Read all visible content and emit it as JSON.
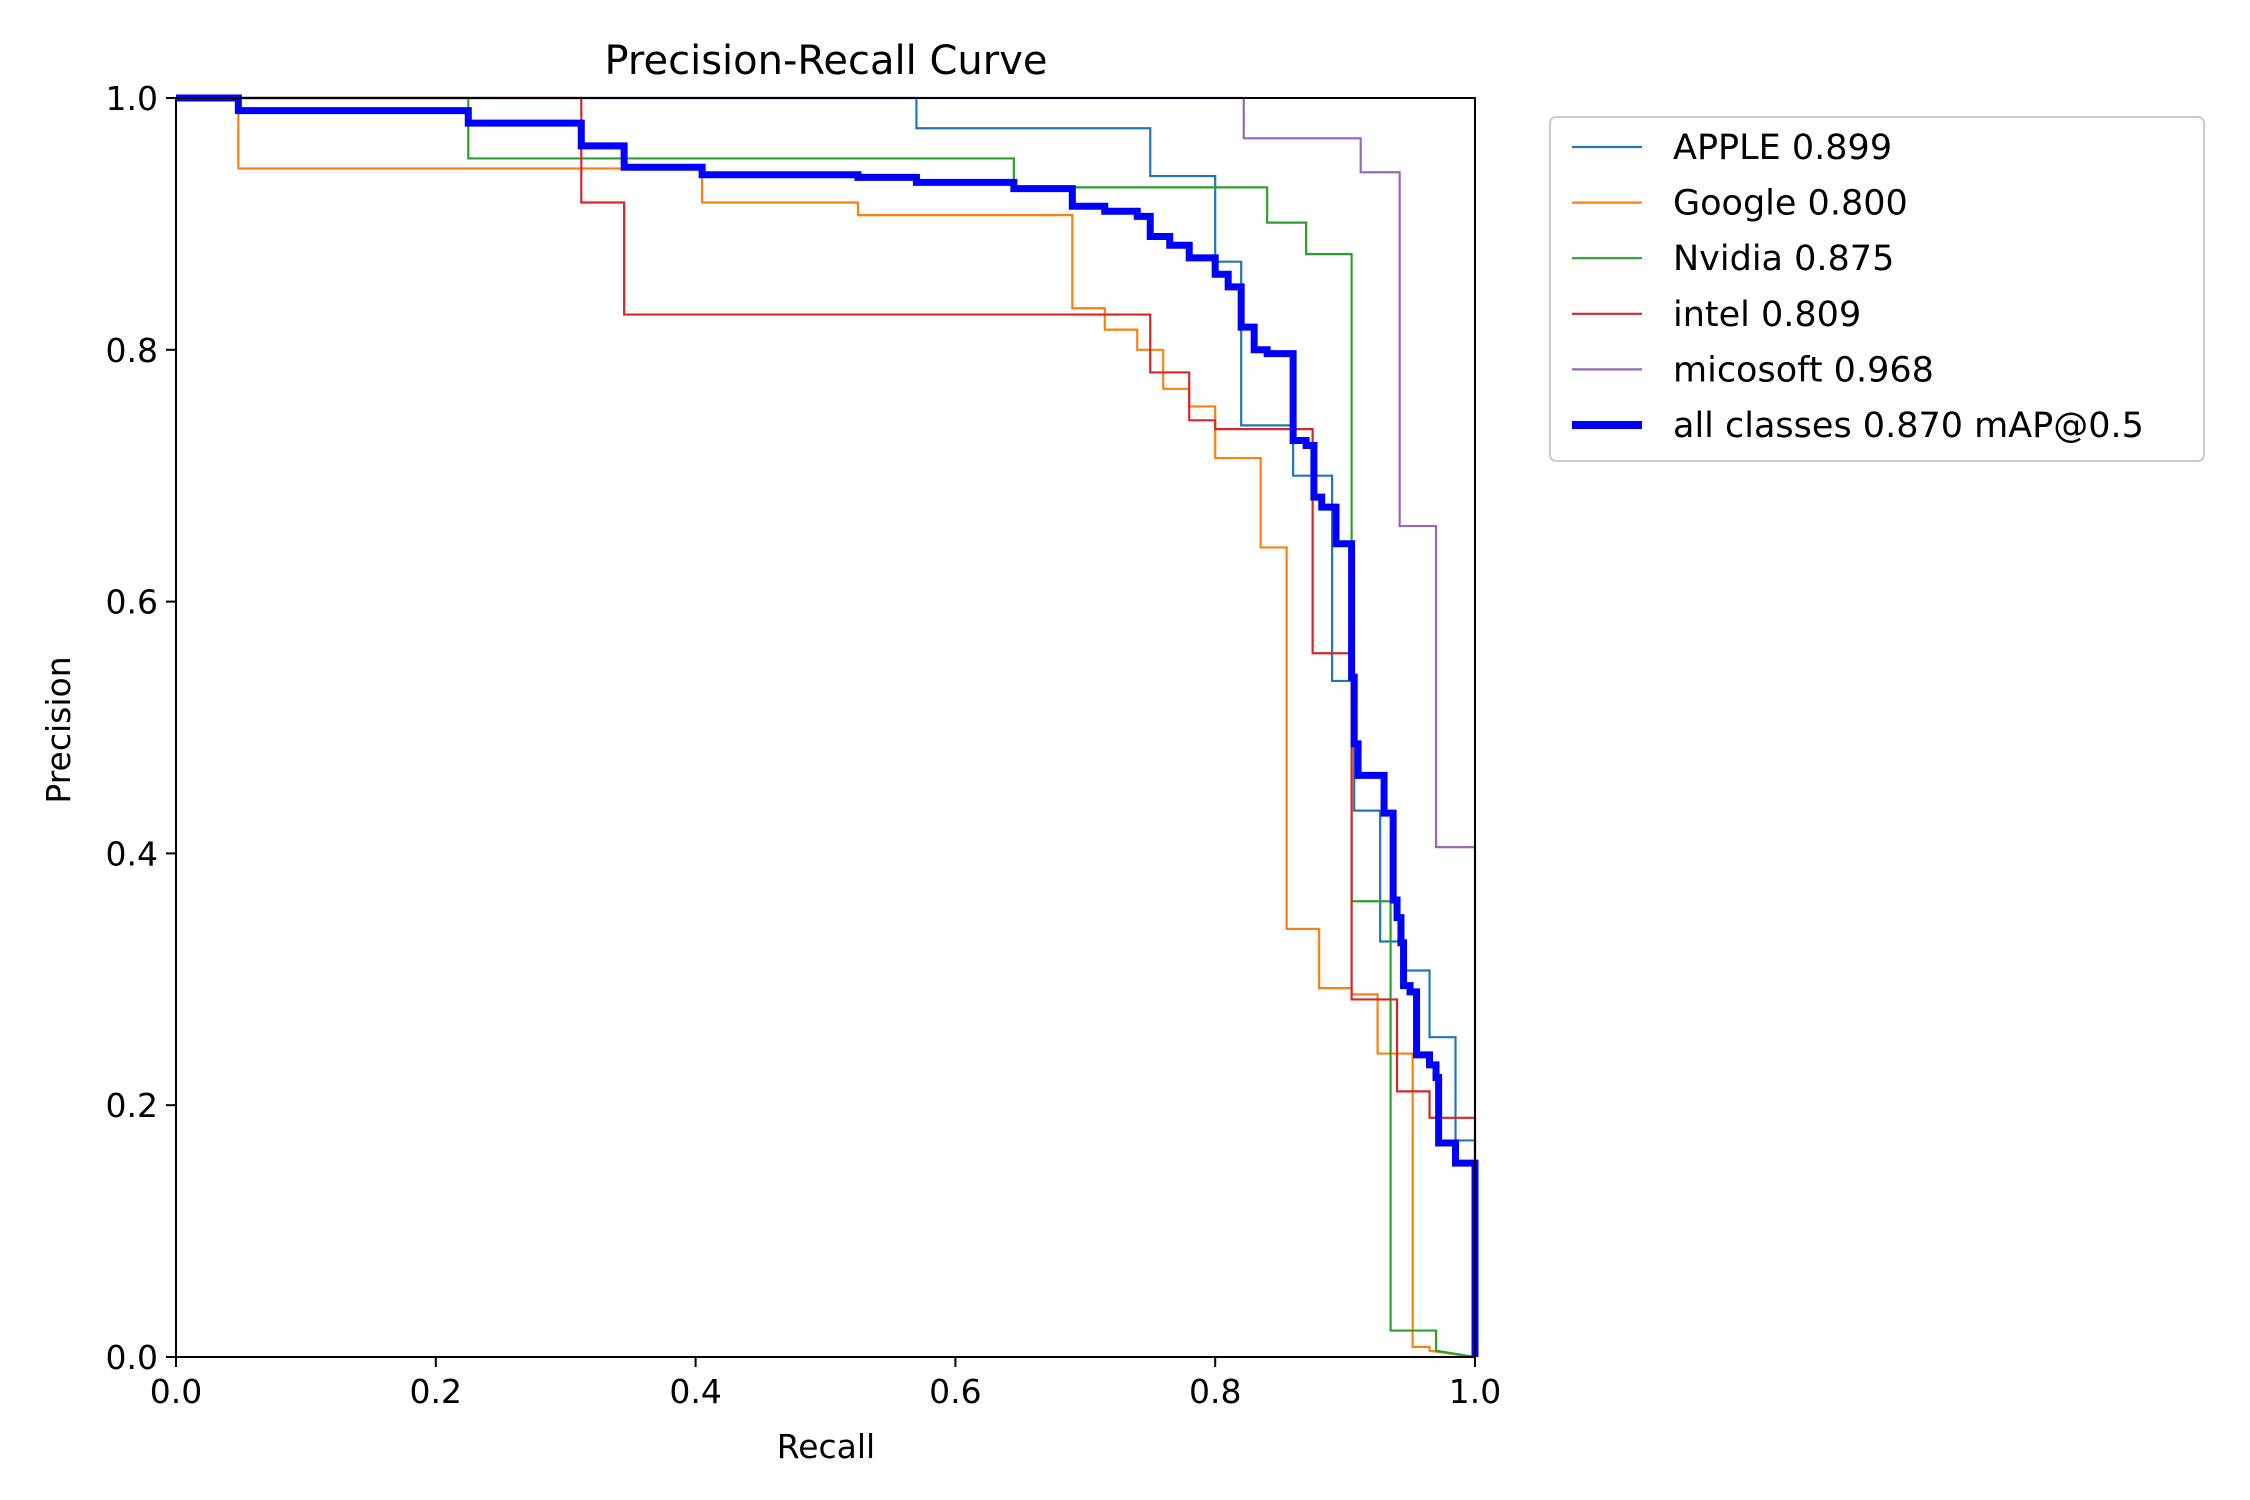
{
  "chart_data": {
    "type": "line",
    "title": "Precision-Recall Curve",
    "xlabel": "Recall",
    "ylabel": "Precision",
    "xlim": [
      0,
      1
    ],
    "ylim": [
      0,
      1
    ],
    "x_ticks": [
      "0.0",
      "0.2",
      "0.4",
      "0.6",
      "0.8",
      "1.0"
    ],
    "y_ticks": [
      "0.0",
      "0.2",
      "0.4",
      "0.6",
      "0.8",
      "1.0"
    ],
    "grid": false,
    "legend_position": "outside-upper-right",
    "series": [
      {
        "name": "APPLE 0.899",
        "color": "#1f77b4",
        "weight": "thin",
        "points": [
          [
            0,
            1.0
          ],
          [
            0.57,
            1.0
          ],
          [
            0.57,
            0.976
          ],
          [
            0.75,
            0.976
          ],
          [
            0.75,
            0.938
          ],
          [
            0.8,
            0.938
          ],
          [
            0.8,
            0.87
          ],
          [
            0.82,
            0.87
          ],
          [
            0.82,
            0.74
          ],
          [
            0.86,
            0.74
          ],
          [
            0.86,
            0.7
          ],
          [
            0.89,
            0.7
          ],
          [
            0.89,
            0.537
          ],
          [
            0.907,
            0.537
          ],
          [
            0.907,
            0.434
          ],
          [
            0.927,
            0.434
          ],
          [
            0.927,
            0.33
          ],
          [
            0.945,
            0.33
          ],
          [
            0.945,
            0.307
          ],
          [
            0.965,
            0.307
          ],
          [
            0.965,
            0.254
          ],
          [
            0.985,
            0.254
          ],
          [
            0.985,
            0.172
          ],
          [
            1.0,
            0.172
          ],
          [
            1.0,
            0.0
          ]
        ]
      },
      {
        "name": "Google 0.800",
        "color": "#ff7f0e",
        "weight": "thin",
        "points": [
          [
            0,
            1.0
          ],
          [
            0.048,
            1.0
          ],
          [
            0.048,
            0.944
          ],
          [
            0.405,
            0.944
          ],
          [
            0.405,
            0.917
          ],
          [
            0.525,
            0.917
          ],
          [
            0.525,
            0.907
          ],
          [
            0.69,
            0.907
          ],
          [
            0.69,
            0.833
          ],
          [
            0.715,
            0.833
          ],
          [
            0.715,
            0.816
          ],
          [
            0.74,
            0.816
          ],
          [
            0.74,
            0.8
          ],
          [
            0.76,
            0.8
          ],
          [
            0.76,
            0.769
          ],
          [
            0.78,
            0.769
          ],
          [
            0.78,
            0.755
          ],
          [
            0.8,
            0.755
          ],
          [
            0.8,
            0.714
          ],
          [
            0.835,
            0.714
          ],
          [
            0.835,
            0.643
          ],
          [
            0.855,
            0.643
          ],
          [
            0.855,
            0.34
          ],
          [
            0.88,
            0.34
          ],
          [
            0.88,
            0.293
          ],
          [
            0.905,
            0.293
          ],
          [
            0.905,
            0.288
          ],
          [
            0.925,
            0.288
          ],
          [
            0.925,
            0.241
          ],
          [
            0.952,
            0.241
          ],
          [
            0.952,
            0.008
          ],
          [
            0.965,
            0.008
          ],
          [
            0.965,
            0.005
          ],
          [
            1.0,
            0.0
          ]
        ]
      },
      {
        "name": "Nvidia 0.875",
        "color": "#2ca02c",
        "weight": "thin",
        "points": [
          [
            0,
            1.0
          ],
          [
            0.225,
            1.0
          ],
          [
            0.225,
            0.952
          ],
          [
            0.645,
            0.952
          ],
          [
            0.645,
            0.929
          ],
          [
            0.84,
            0.929
          ],
          [
            0.84,
            0.901
          ],
          [
            0.87,
            0.901
          ],
          [
            0.87,
            0.876
          ],
          [
            0.905,
            0.876
          ],
          [
            0.905,
            0.362
          ],
          [
            0.935,
            0.362
          ],
          [
            0.935,
            0.021
          ],
          [
            0.97,
            0.021
          ],
          [
            0.97,
            0.005
          ],
          [
            1.0,
            0.0
          ]
        ]
      },
      {
        "name": "intel 0.809",
        "color": "#d62728",
        "weight": "thin",
        "points": [
          [
            0,
            1.0
          ],
          [
            0.312,
            1.0
          ],
          [
            0.312,
            0.917
          ],
          [
            0.345,
            0.917
          ],
          [
            0.345,
            0.828
          ],
          [
            0.75,
            0.828
          ],
          [
            0.75,
            0.782
          ],
          [
            0.78,
            0.782
          ],
          [
            0.78,
            0.744
          ],
          [
            0.8,
            0.744
          ],
          [
            0.8,
            0.737
          ],
          [
            0.875,
            0.737
          ],
          [
            0.875,
            0.559
          ],
          [
            0.905,
            0.559
          ],
          [
            0.905,
            0.284
          ],
          [
            0.94,
            0.284
          ],
          [
            0.94,
            0.211
          ],
          [
            0.965,
            0.211
          ],
          [
            0.965,
            0.19
          ],
          [
            1.0,
            0.19
          ],
          [
            1.0,
            0.0
          ]
        ]
      },
      {
        "name": "micosoft 0.968",
        "color": "#9467bd",
        "weight": "thin",
        "points": [
          [
            0,
            1.0
          ],
          [
            0.822,
            1.0
          ],
          [
            0.822,
            0.968
          ],
          [
            0.912,
            0.968
          ],
          [
            0.912,
            0.941
          ],
          [
            0.942,
            0.941
          ],
          [
            0.942,
            0.66
          ],
          [
            0.97,
            0.66
          ],
          [
            0.97,
            0.405
          ],
          [
            1.0,
            0.405
          ],
          [
            1.0,
            0.0
          ]
        ]
      },
      {
        "name": "all classes 0.870 mAP@0.5",
        "color": "#0000ff",
        "weight": "thick",
        "points": [
          [
            0,
            1.0
          ],
          [
            0.048,
            1.0
          ],
          [
            0.048,
            0.99
          ],
          [
            0.225,
            0.99
          ],
          [
            0.225,
            0.98
          ],
          [
            0.312,
            0.98
          ],
          [
            0.312,
            0.962
          ],
          [
            0.345,
            0.962
          ],
          [
            0.345,
            0.945
          ],
          [
            0.405,
            0.945
          ],
          [
            0.405,
            0.939
          ],
          [
            0.525,
            0.939
          ],
          [
            0.525,
            0.937
          ],
          [
            0.57,
            0.937
          ],
          [
            0.57,
            0.933
          ],
          [
            0.645,
            0.933
          ],
          [
            0.645,
            0.928
          ],
          [
            0.69,
            0.928
          ],
          [
            0.69,
            0.914
          ],
          [
            0.715,
            0.914
          ],
          [
            0.715,
            0.91
          ],
          [
            0.74,
            0.91
          ],
          [
            0.74,
            0.906
          ],
          [
            0.75,
            0.906
          ],
          [
            0.75,
            0.89
          ],
          [
            0.765,
            0.89
          ],
          [
            0.765,
            0.883
          ],
          [
            0.78,
            0.883
          ],
          [
            0.78,
            0.873
          ],
          [
            0.8,
            0.873
          ],
          [
            0.8,
            0.86
          ],
          [
            0.81,
            0.86
          ],
          [
            0.81,
            0.85
          ],
          [
            0.82,
            0.85
          ],
          [
            0.82,
            0.818
          ],
          [
            0.83,
            0.818
          ],
          [
            0.83,
            0.8
          ],
          [
            0.84,
            0.8
          ],
          [
            0.84,
            0.797
          ],
          [
            0.86,
            0.797
          ],
          [
            0.86,
            0.728
          ],
          [
            0.87,
            0.728
          ],
          [
            0.87,
            0.724
          ],
          [
            0.876,
            0.724
          ],
          [
            0.876,
            0.683
          ],
          [
            0.882,
            0.683
          ],
          [
            0.882,
            0.675
          ],
          [
            0.893,
            0.675
          ],
          [
            0.893,
            0.646
          ],
          [
            0.905,
            0.646
          ],
          [
            0.905,
            0.54
          ],
          [
            0.907,
            0.54
          ],
          [
            0.907,
            0.487
          ],
          [
            0.91,
            0.487
          ],
          [
            0.91,
            0.462
          ],
          [
            0.93,
            0.462
          ],
          [
            0.93,
            0.432
          ],
          [
            0.937,
            0.432
          ],
          [
            0.937,
            0.363
          ],
          [
            0.94,
            0.363
          ],
          [
            0.94,
            0.349
          ],
          [
            0.943,
            0.349
          ],
          [
            0.943,
            0.329
          ],
          [
            0.945,
            0.329
          ],
          [
            0.945,
            0.295
          ],
          [
            0.95,
            0.295
          ],
          [
            0.95,
            0.29
          ],
          [
            0.955,
            0.29
          ],
          [
            0.955,
            0.24
          ],
          [
            0.965,
            0.24
          ],
          [
            0.965,
            0.232
          ],
          [
            0.97,
            0.232
          ],
          [
            0.97,
            0.222
          ],
          [
            0.972,
            0.222
          ],
          [
            0.972,
            0.17
          ],
          [
            0.985,
            0.17
          ],
          [
            0.985,
            0.154
          ],
          [
            1.0,
            0.154
          ],
          [
            1.0,
            0.0
          ]
        ]
      }
    ]
  }
}
